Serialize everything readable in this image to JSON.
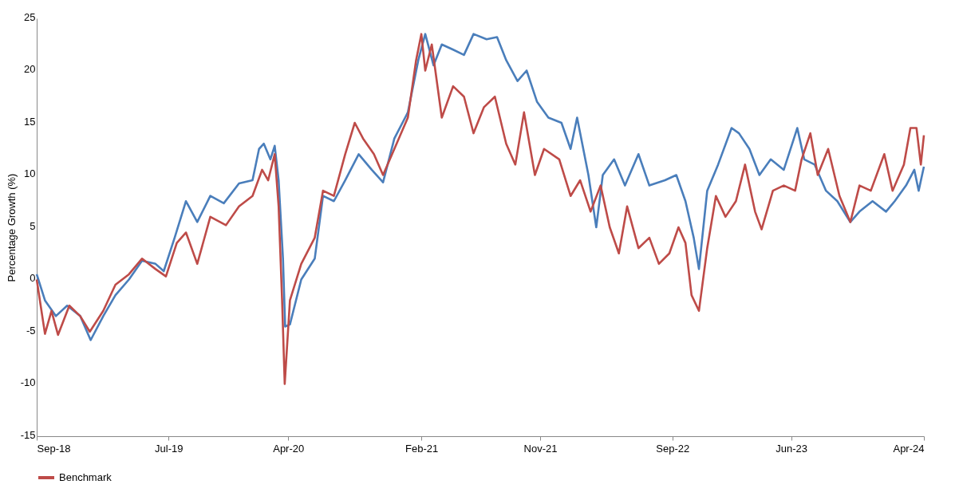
{
  "chart_data": {
    "type": "line",
    "ylabel": "Percentage Growth (%)",
    "xlim": [
      "2018-09-01",
      "2024-04-01"
    ],
    "xticks": [
      {
        "value": "2018-09-01",
        "label": "Sep-18"
      },
      {
        "value": "2019-07-01",
        "label": "Jul-19"
      },
      {
        "value": "2020-04-01",
        "label": "Apr-20"
      },
      {
        "value": "2021-02-01",
        "label": "Feb-21"
      },
      {
        "value": "2021-11-01",
        "label": "Nov-21"
      },
      {
        "value": "2022-09-01",
        "label": "Sep-22"
      },
      {
        "value": "2023-06-01",
        "label": "Jun-23"
      },
      {
        "value": "2024-04-01",
        "label": "Apr-24"
      }
    ],
    "ylim": [
      -15,
      25
    ],
    "yticks": [
      -15,
      -10,
      -5,
      0,
      5,
      10,
      15,
      20,
      25
    ],
    "grid": false,
    "legend": "bottom",
    "line_style": "solid",
    "marker": "none",
    "series": [
      {
        "color": "#4a7ebb",
        "x": [
          "2018-09-01",
          "2018-09-20",
          "2018-10-15",
          "2018-11-10",
          "2018-12-10",
          "2019-01-03",
          "2019-02-01",
          "2019-03-01",
          "2019-04-01",
          "2019-05-01",
          "2019-06-01",
          "2019-06-20",
          "2019-07-15",
          "2019-08-10",
          "2019-09-05",
          "2019-10-05",
          "2019-11-05",
          "2019-12-10",
          "2020-01-10",
          "2020-01-25",
          "2020-02-05",
          "2020-02-20",
          "2020-03-01",
          "2020-03-10",
          "2020-03-20",
          "2020-03-25",
          "2020-04-05",
          "2020-05-01",
          "2020-06-01",
          "2020-06-20",
          "2020-07-15",
          "2020-08-10",
          "2020-09-10",
          "2020-10-10",
          "2020-11-05",
          "2020-12-01",
          "2021-01-01",
          "2021-01-25",
          "2021-02-10",
          "2021-03-01",
          "2021-03-20",
          "2021-04-15",
          "2021-05-10",
          "2021-06-01",
          "2021-07-01",
          "2021-07-25",
          "2021-08-15",
          "2021-09-10",
          "2021-10-01",
          "2021-10-25",
          "2021-11-20",
          "2021-12-20",
          "2022-01-10",
          "2022-01-25",
          "2022-02-20",
          "2022-03-10",
          "2022-03-25",
          "2022-04-20",
          "2022-05-15",
          "2022-06-15",
          "2022-07-10",
          "2022-08-15",
          "2022-09-10",
          "2022-10-01",
          "2022-10-20",
          "2022-11-01",
          "2022-11-20",
          "2022-12-15",
          "2023-01-15",
          "2023-02-01",
          "2023-02-25",
          "2023-03-20",
          "2023-04-15",
          "2023-05-15",
          "2023-06-15",
          "2023-07-01",
          "2023-07-25",
          "2023-08-20",
          "2023-09-15",
          "2023-10-15",
          "2023-11-05",
          "2023-12-05",
          "2024-01-05",
          "2024-01-25",
          "2024-02-20",
          "2024-03-10",
          "2024-03-20",
          "2024-04-01"
        ],
        "values": [
          0.5,
          -2,
          -3.5,
          -2.5,
          -3.5,
          -5.8,
          -3.5,
          -1.5,
          0,
          1.8,
          1.5,
          0.8,
          4,
          7.5,
          5.5,
          8,
          7.3,
          9.2,
          9.5,
          12.5,
          13,
          11.5,
          12.8,
          9.5,
          2,
          -4.5,
          -4.3,
          0,
          2,
          8,
          7.5,
          9.5,
          12,
          10.5,
          9.3,
          13.5,
          16,
          21,
          23.5,
          20.5,
          22.5,
          22,
          21.5,
          23.5,
          23,
          23.2,
          21,
          19,
          20,
          17,
          15.5,
          15,
          12.5,
          15.5,
          10,
          5,
          10,
          11.5,
          9,
          12,
          9,
          9.5,
          10,
          7.5,
          4,
          1,
          8.5,
          11,
          14.5,
          14,
          12.5,
          10,
          11.5,
          10.5,
          14.5,
          11.5,
          11,
          8.5,
          7.5,
          5.5,
          6.5,
          7.5,
          6.5,
          7.5,
          9,
          10.5,
          8.5,
          10.8
        ]
      },
      {
        "name": "Benchmark",
        "color": "#be4b48",
        "x": [
          "2018-09-01",
          "2018-09-20",
          "2018-10-05",
          "2018-10-20",
          "2018-11-15",
          "2018-12-10",
          "2019-01-01",
          "2019-02-01",
          "2019-03-01",
          "2019-04-01",
          "2019-05-01",
          "2019-06-01",
          "2019-06-25",
          "2019-07-20",
          "2019-08-10",
          "2019-09-05",
          "2019-10-05",
          "2019-11-10",
          "2019-12-10",
          "2020-01-10",
          "2020-02-01",
          "2020-02-15",
          "2020-03-01",
          "2020-03-10",
          "2020-03-18",
          "2020-03-24",
          "2020-04-05",
          "2020-05-01",
          "2020-06-01",
          "2020-06-20",
          "2020-07-15",
          "2020-08-10",
          "2020-09-01",
          "2020-09-20",
          "2020-10-15",
          "2020-11-05",
          "2020-12-01",
          "2021-01-01",
          "2021-01-20",
          "2021-02-01",
          "2021-02-10",
          "2021-02-25",
          "2021-03-20",
          "2021-04-15",
          "2021-05-10",
          "2021-06-01",
          "2021-06-25",
          "2021-07-20",
          "2021-08-15",
          "2021-09-05",
          "2021-09-25",
          "2021-10-20",
          "2021-11-10",
          "2021-12-15",
          "2022-01-10",
          "2022-02-01",
          "2022-02-25",
          "2022-03-20",
          "2022-04-10",
          "2022-05-01",
          "2022-05-20",
          "2022-06-15",
          "2022-07-10",
          "2022-08-01",
          "2022-08-25",
          "2022-09-15",
          "2022-10-01",
          "2022-10-15",
          "2022-11-01",
          "2022-11-20",
          "2022-12-10",
          "2023-01-01",
          "2023-01-25",
          "2023-02-15",
          "2023-03-10",
          "2023-03-25",
          "2023-04-20",
          "2023-05-15",
          "2023-06-10",
          "2023-06-25",
          "2023-07-15",
          "2023-08-01",
          "2023-08-25",
          "2023-09-20",
          "2023-10-15",
          "2023-11-05",
          "2023-12-01",
          "2024-01-01",
          "2024-01-20",
          "2024-02-15",
          "2024-03-01",
          "2024-03-15",
          "2024-03-25",
          "2024-04-01"
        ],
        "values": [
          0,
          -5.2,
          -3,
          -5.3,
          -2.5,
          -3.5,
          -5,
          -3,
          -0.5,
          0.5,
          2,
          1,
          0.3,
          3.5,
          4.5,
          1.5,
          6,
          5.2,
          7,
          8,
          10.5,
          9.5,
          12,
          7,
          -2,
          -10,
          -2,
          1.5,
          4,
          8.5,
          8,
          12,
          15,
          13.5,
          12,
          10,
          12.5,
          15.5,
          21,
          23.5,
          20,
          22.5,
          15.5,
          18.5,
          17.5,
          14,
          16.5,
          17.5,
          13,
          11,
          16,
          10,
          12.5,
          11.5,
          8,
          9.5,
          6.5,
          9,
          5,
          2.5,
          7,
          3,
          4,
          1.5,
          2.5,
          5,
          3.5,
          -1.5,
          -3,
          3,
          8,
          6,
          7.5,
          11,
          6.5,
          4.8,
          8.5,
          9,
          8.5,
          11.5,
          14,
          10,
          12.5,
          8,
          5.5,
          9,
          8.5,
          12,
          8.5,
          11,
          14.5,
          14.5,
          11,
          13.8
        ]
      }
    ]
  }
}
